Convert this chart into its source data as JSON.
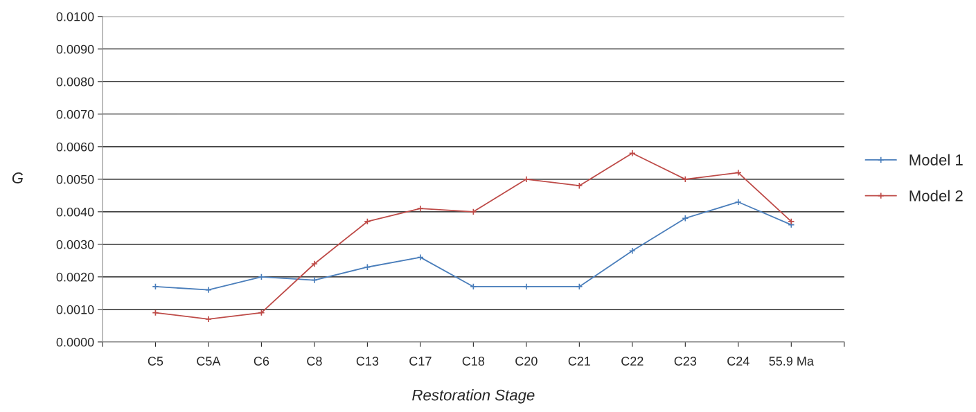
{
  "chart_data": {
    "type": "line",
    "xlabel": "Restoration Stage",
    "ylabel": "G",
    "categories": [
      "C5",
      "C5A",
      "C6",
      "C8",
      "C13",
      "C17",
      "C18",
      "C20",
      "C21",
      "C22",
      "C23",
      "C24",
      "55.9 Ma"
    ],
    "series": [
      {
        "name": "Model 1",
        "color": "#4a7ebb",
        "values": [
          0.0017,
          0.0016,
          0.002,
          0.0019,
          0.0023,
          0.0026,
          0.0017,
          0.0017,
          0.0017,
          0.0028,
          0.0038,
          0.0043,
          0.0036
        ]
      },
      {
        "name": "Model 2",
        "color": "#be4b48",
        "values": [
          0.0009,
          0.0007,
          0.0009,
          0.0024,
          0.0037,
          0.0041,
          0.004,
          0.005,
          0.0048,
          0.0058,
          0.005,
          0.0052,
          0.0037
        ]
      }
    ],
    "ylim": [
      0,
      0.01
    ],
    "yticks": [
      {
        "value": 0,
        "label": "0.0000"
      },
      {
        "value": 0.001,
        "label": "0.0010"
      },
      {
        "value": 0.002,
        "label": "0.0020"
      },
      {
        "value": 0.003,
        "label": "0.0030"
      },
      {
        "value": 0.004,
        "label": "0.0040"
      },
      {
        "value": 0.005,
        "label": "0.0050"
      },
      {
        "value": 0.006,
        "label": "0.0060"
      },
      {
        "value": 0.007,
        "label": "0.0070"
      },
      {
        "value": 0.008,
        "label": "0.0080"
      },
      {
        "value": 0.009,
        "label": "0.0090"
      },
      {
        "value": 0.01,
        "label": "0.0100"
      }
    ],
    "grid": "y",
    "legend": "right",
    "marker": "cross",
    "line_style": "solid"
  }
}
